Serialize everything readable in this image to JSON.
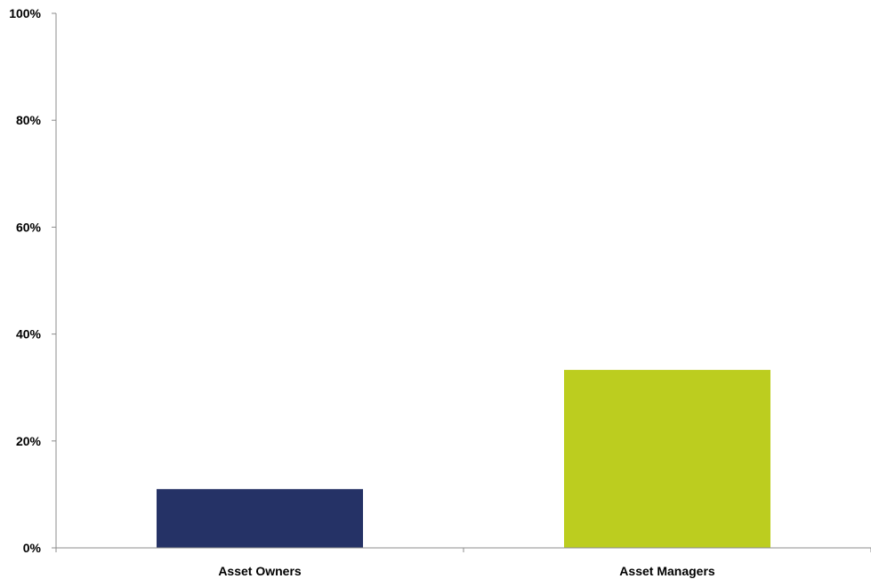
{
  "chart_data": {
    "type": "bar",
    "categories": [
      "Asset Owners",
      "Asset Managers"
    ],
    "values": [
      11,
      33.3
    ],
    "colors": [
      "#253266",
      "#bccd1f"
    ],
    "ylim": [
      0,
      100
    ],
    "yticks": [
      0,
      20,
      40,
      60,
      80,
      100
    ],
    "ytick_labels": [
      "0%",
      "20%",
      "40%",
      "60%",
      "80%",
      "100%"
    ],
    "title": "",
    "xlabel": "",
    "ylabel": "",
    "grid": false,
    "legend": "none"
  }
}
